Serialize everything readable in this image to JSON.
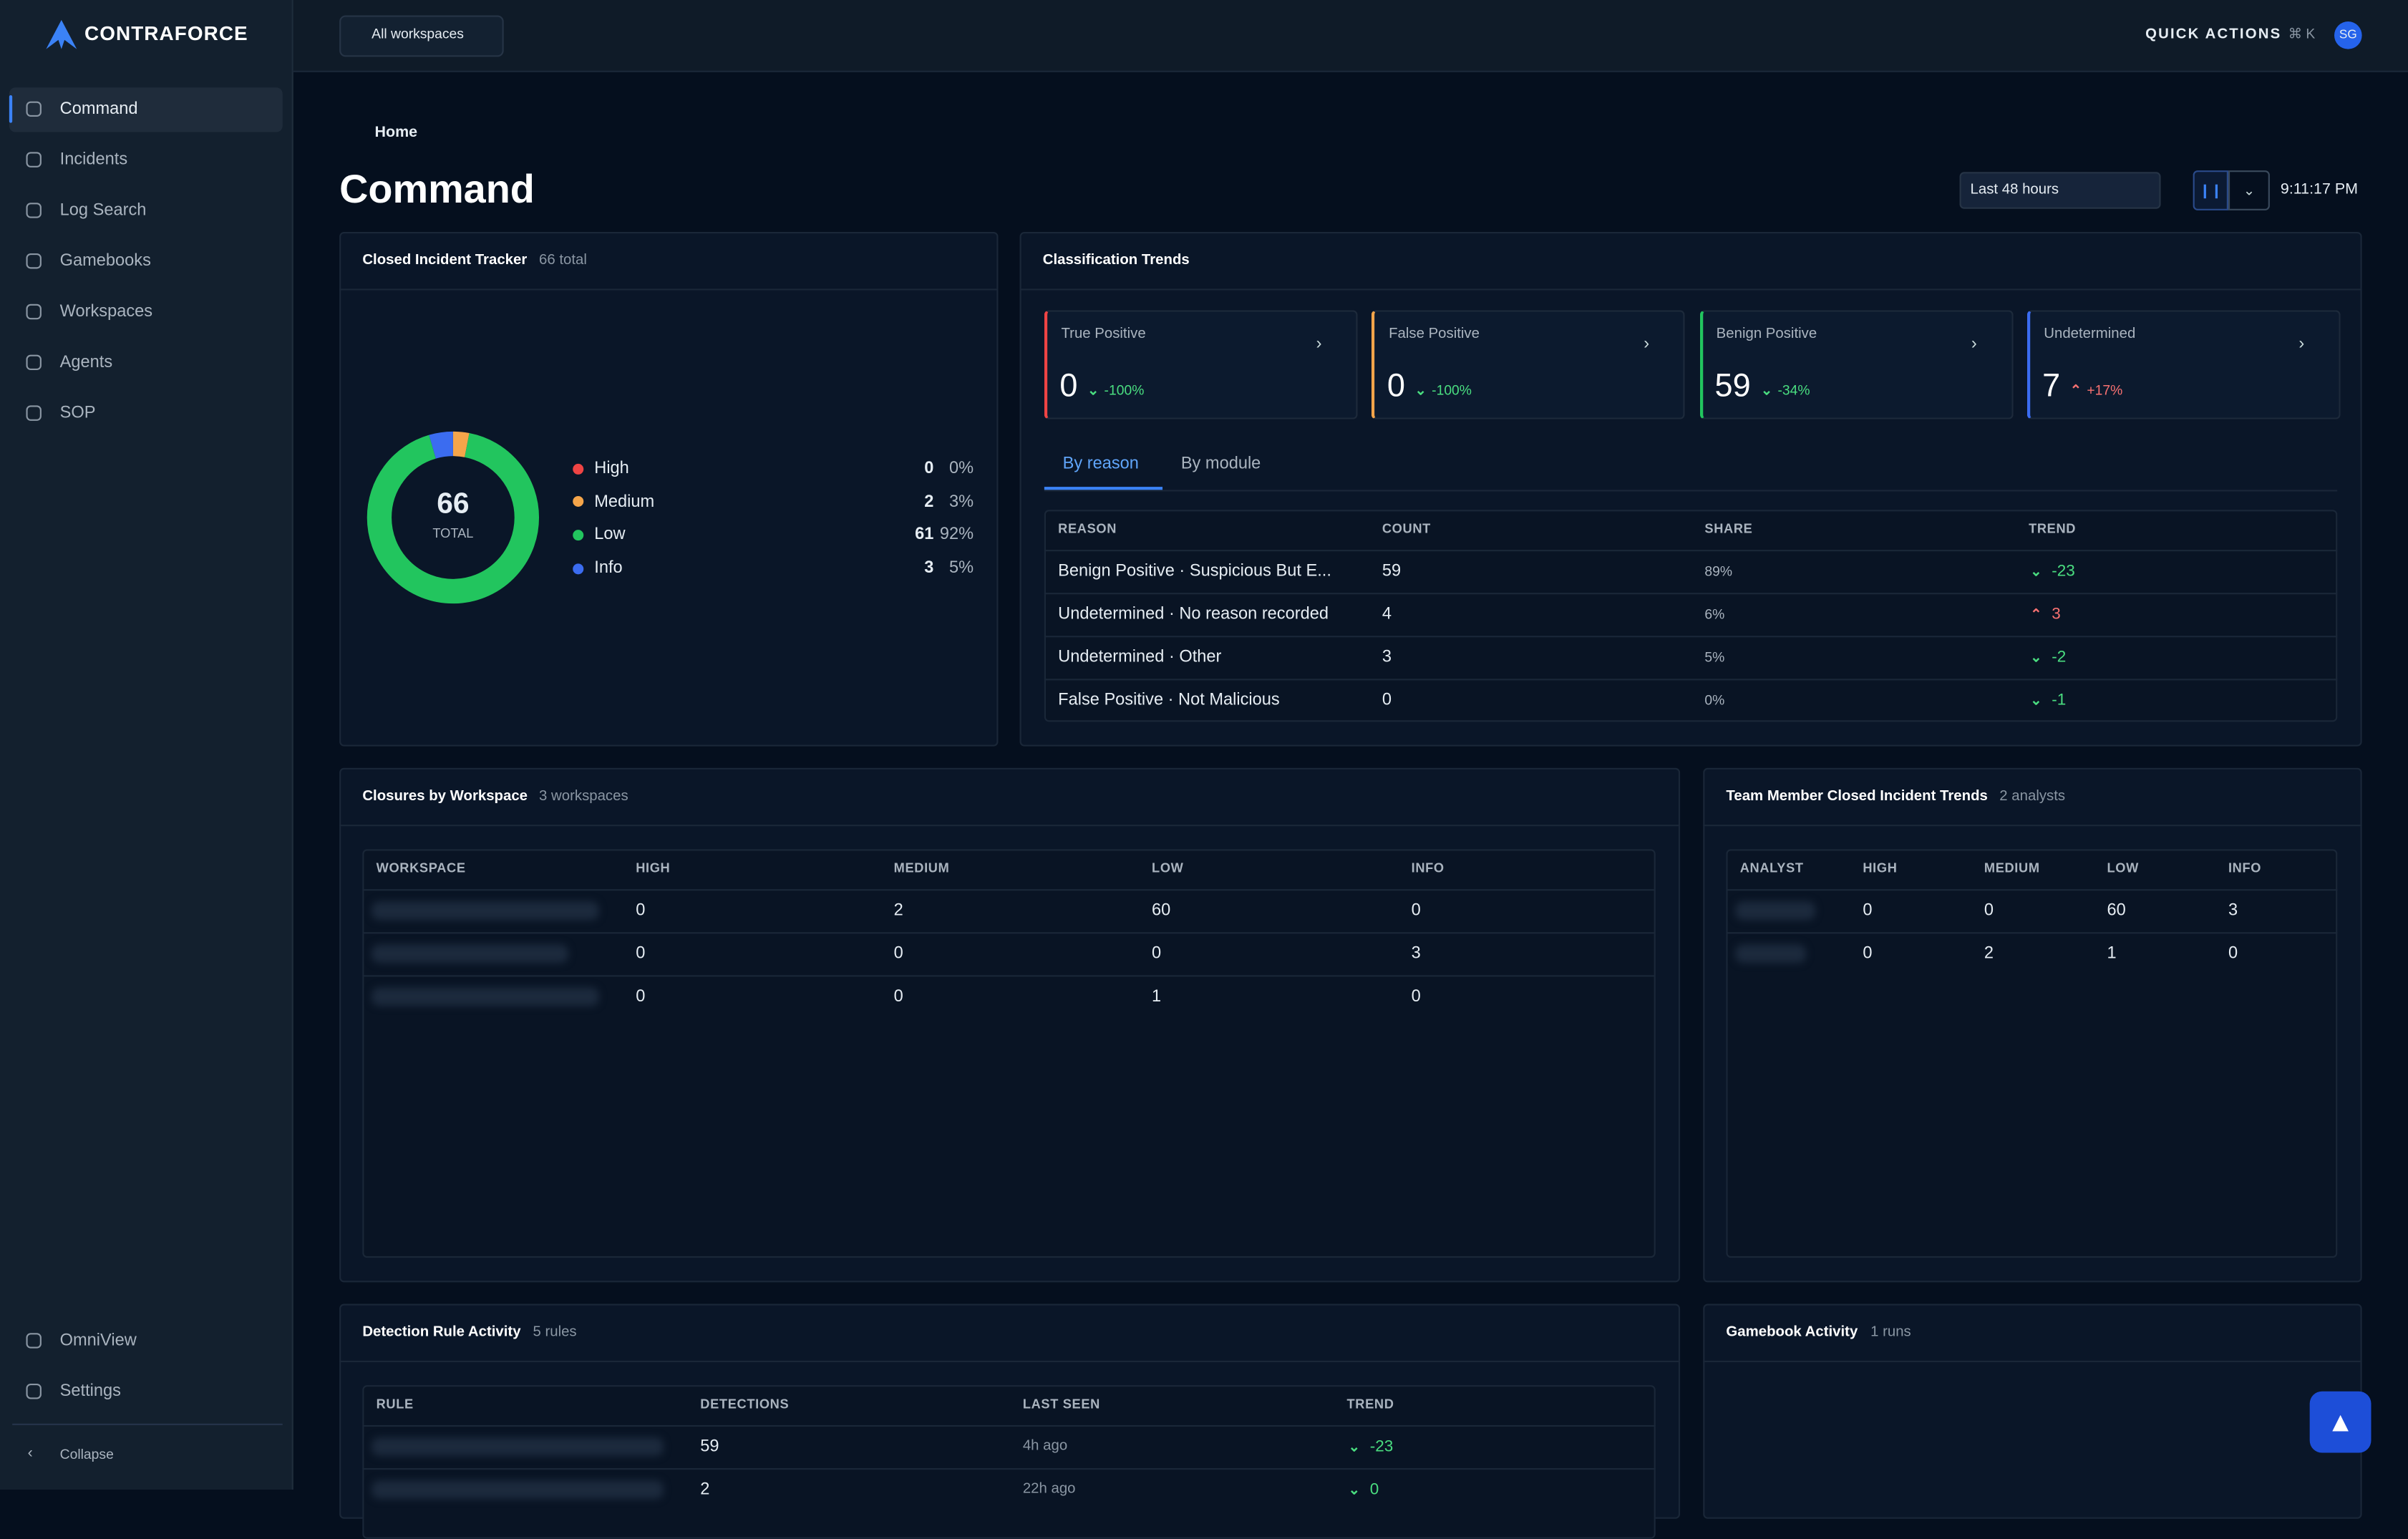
{
  "sidebar": {
    "brand": "CONTRAFORCE",
    "nav": [
      "Command",
      "Incidents",
      "Log Search",
      "Gamebooks",
      "Workspaces",
      "Agents",
      "SOP"
    ],
    "bottom_nav": [
      "OmniView",
      "Settings"
    ],
    "collapse": "Collapse"
  },
  "topbar": {
    "workspace_selector": "All workspaces",
    "quick_actions": "QUICK ACTIONS",
    "shortcut": "⌘ K",
    "avatar": "SG"
  },
  "breadcrumb": "Home",
  "page_title": "Command",
  "time_range": "Last 48 hours",
  "clock": "9:11:17 PM",
  "closed_incident_tracker": {
    "title": "Closed Incident Tracker",
    "subtitle": "66 total",
    "total": 66,
    "total_label": "TOTAL",
    "severities": [
      {
        "name": "High",
        "count": 0,
        "share": "0%",
        "color": "#ef4444"
      },
      {
        "name": "Medium",
        "count": 2,
        "share": "3%",
        "color": "#f5a54a"
      },
      {
        "name": "Low",
        "count": 61,
        "share": "92%",
        "color": "#22c55e"
      },
      {
        "name": "Info",
        "count": 3,
        "share": "5%",
        "color": "#3b6cf0"
      }
    ]
  },
  "classification_trends": {
    "title": "Classification Trends",
    "cards": [
      {
        "label": "True Positive",
        "value": 0,
        "change": "-100%",
        "direction": "down",
        "color": "#ef4444"
      },
      {
        "label": "False Positive",
        "value": 0,
        "change": "-100%",
        "direction": "down",
        "color": "#f5a54a"
      },
      {
        "label": "Benign Positive",
        "value": 59,
        "change": "-34%",
        "direction": "down",
        "color": "#22c55e"
      },
      {
        "label": "Undetermined",
        "value": 7,
        "change": "+17%",
        "direction": "up",
        "color": "#3b6cf0"
      }
    ],
    "tabs": [
      "By reason",
      "By module"
    ],
    "columns": [
      "REASON",
      "COUNT",
      "SHARE",
      "TREND"
    ],
    "rows": [
      [
        "Benign Positive · Suspicious But E...",
        59,
        "89%",
        -23
      ],
      [
        "Undetermined · No reason recorded",
        4,
        "6%",
        3
      ],
      [
        "Undetermined · Other",
        3,
        "5%",
        -2
      ],
      [
        "False Positive · Not Malicious",
        0,
        "0%",
        -1
      ]
    ]
  },
  "closures_by_workspace": {
    "title": "Closures by Workspace",
    "subtitle": "3 workspaces",
    "columns": [
      "WORKSPACE",
      "HIGH",
      "MEDIUM",
      "LOW",
      "INFO"
    ],
    "rows": [
      [
        0,
        2,
        60,
        0
      ],
      [
        0,
        0,
        0,
        3
      ],
      [
        0,
        0,
        1,
        0
      ]
    ]
  },
  "team_member_trends": {
    "title": "Team Member Closed Incident Trends",
    "subtitle": "2 analysts",
    "columns": [
      "ANALYST",
      "HIGH",
      "MEDIUM",
      "LOW",
      "INFO"
    ],
    "rows": [
      [
        0,
        0,
        60,
        3
      ],
      [
        0,
        2,
        1,
        0
      ]
    ]
  },
  "detection_rule_activity": {
    "title": "Detection Rule Activity",
    "subtitle": "5 rules",
    "columns": [
      "RULE",
      "DETECTIONS",
      "LAST SEEN",
      "TREND"
    ],
    "rows": [
      {
        "detections": 59,
        "last_seen": "4h ago",
        "trend": -23
      },
      {
        "detections": 2,
        "last_seen": "22h ago",
        "trend": 0
      }
    ]
  },
  "gamebook_activity": {
    "title": "Gamebook Activity",
    "subtitle": "1 runs"
  }
}
